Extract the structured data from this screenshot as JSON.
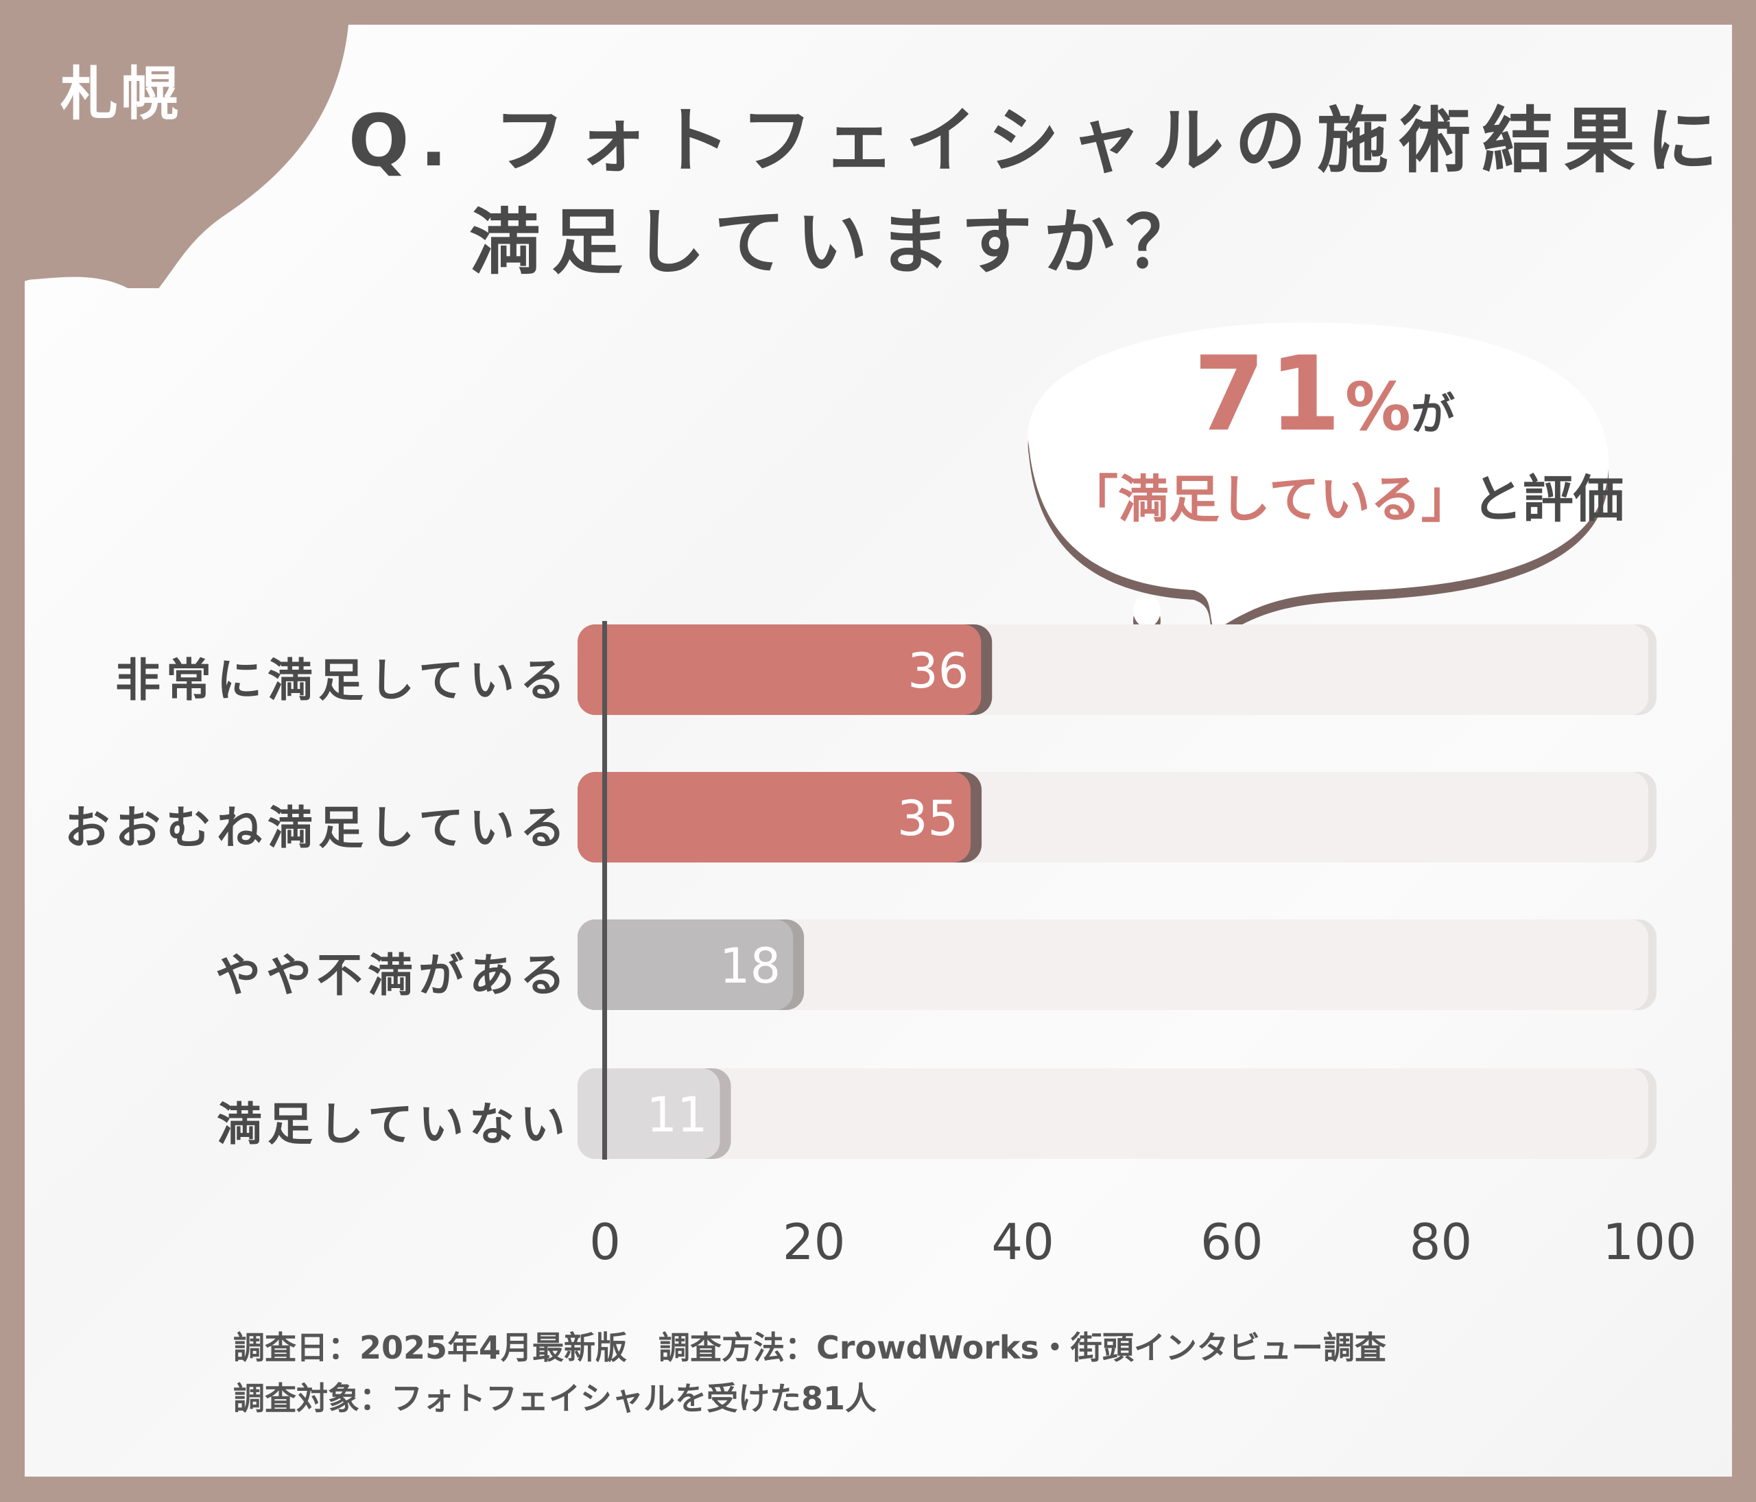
{
  "badge": {
    "city": "札幌"
  },
  "title": {
    "line1": "Q. フォトフェイシャルの施術結果に",
    "line2": "満足していますか？"
  },
  "callout": {
    "percent": "71",
    "percent_unit": "%",
    "particle": "が",
    "quote": "「満足している」",
    "suffix": "と評価"
  },
  "colors": {
    "frame": "#b39a91",
    "satisfied": "#d07a74",
    "satisfied_shadow": "#7a6461",
    "somewhat_dissatisfied": "#bdbbbb",
    "not_satisfied": "#dcdadb",
    "track": "#f3f0ef",
    "text": "#4a4a4a"
  },
  "chart_data": {
    "type": "bar",
    "orientation": "horizontal",
    "categories": [
      "非常に満足している",
      "おおむね満足している",
      "やや不満がある",
      "満足していない"
    ],
    "values": [
      36,
      35,
      18,
      11
    ],
    "xlim": [
      0,
      100
    ],
    "xticks": [
      "0",
      "20",
      "40",
      "60",
      "80",
      "100"
    ],
    "grid": false,
    "data_labels": [
      "36",
      "35",
      "18",
      "11"
    ]
  },
  "footer": {
    "line1": "調査日：2025年4月最新版　調査方法：CrowdWorks・街頭インタビュー調査",
    "line2": "調査対象：フォトフェイシャルを受けた81人"
  }
}
